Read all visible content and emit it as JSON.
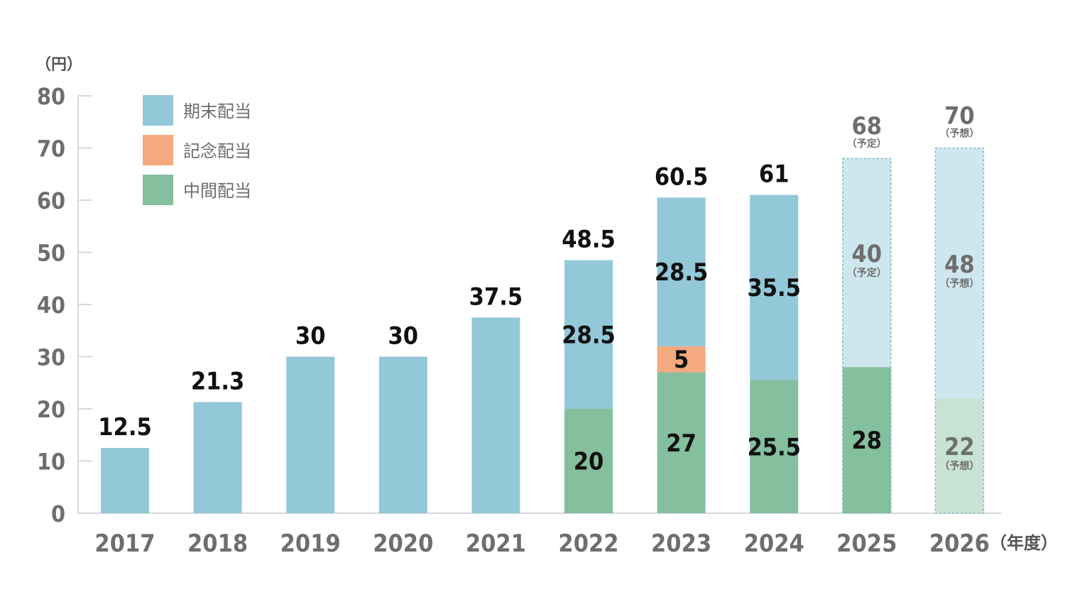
{
  "chart_data": {
    "type": "bar",
    "stacked": true,
    "y_unit": "（円）",
    "x_unit": "（年度）",
    "ylim": [
      0,
      80
    ],
    "y_ticks": [
      "0",
      "10",
      "20",
      "30",
      "40",
      "50",
      "60",
      "70",
      "80"
    ],
    "categories": [
      "2017",
      "2018",
      "2019",
      "2020",
      "2021",
      "2022",
      "2023",
      "2024",
      "2025",
      "2026"
    ],
    "series": [
      {
        "name": "中間配当",
        "color": "#84bf9e",
        "values": [
          null,
          null,
          null,
          null,
          null,
          20,
          27,
          25.5,
          28,
          22
        ]
      },
      {
        "name": "記念配当",
        "color": "#f5a97f",
        "values": [
          null,
          null,
          null,
          null,
          null,
          null,
          5,
          null,
          null,
          null
        ]
      },
      {
        "name": "期末配当",
        "color": "#93c8d8",
        "values": [
          12.5,
          21.3,
          30,
          30,
          37.5,
          28.5,
          28.5,
          35.5,
          40,
          48
        ]
      }
    ],
    "totals": [
      12.5,
      21.3,
      30,
      30,
      37.5,
      48.5,
      60.5,
      61,
      68,
      70
    ],
    "total_labels": [
      "12.5",
      "21.3",
      "30",
      "30",
      "37.5",
      "48.5",
      "60.5",
      "61",
      "68",
      "70"
    ],
    "segment_labels": {
      "中間配当": [
        null,
        null,
        null,
        null,
        null,
        "20",
        "27",
        "25.5",
        "28",
        "22"
      ],
      "記念配当": [
        null,
        null,
        null,
        null,
        null,
        null,
        "5",
        null,
        null,
        null
      ],
      "期末配当": [
        null,
        null,
        null,
        null,
        null,
        "28.5",
        "28.5",
        "35.5",
        "40",
        "48"
      ]
    },
    "forecast_notes": {
      "2025": {
        "total": "（予定）",
        "期末配当": "（予定）"
      },
      "2026": {
        "total": "（予想）",
        "期末配当": "（予想）",
        "中間配当": "（予想）"
      }
    },
    "projected_categories": [
      "2026"
    ],
    "planned_categories": [
      "2025"
    ],
    "legend": [
      "期末配当",
      "記念配当",
      "中間配当"
    ],
    "legend_placement": "top-left",
    "grid": false
  }
}
